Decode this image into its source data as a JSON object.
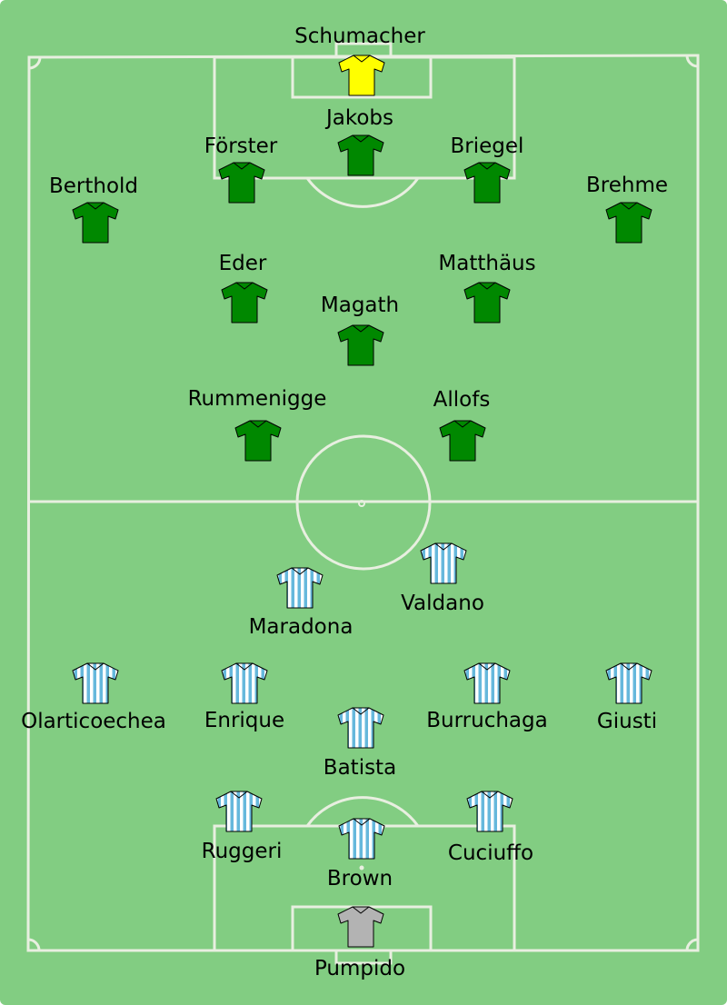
{
  "colors": {
    "pitch": "#82cd82",
    "lines": "#e8efe0",
    "germany_kit": "#008800",
    "germany_goalkeeper_kit": "#ffff00",
    "argentina_stripe_light": "#ffffff",
    "argentina_stripe_blue": "#66b8dc",
    "argentina_goalkeeper_kit": "#b3b3b3"
  },
  "germany": {
    "players": [
      {
        "name": "Schumacher",
        "role": "goalkeeper"
      },
      {
        "name": "Jakobs",
        "role": "outfield"
      },
      {
        "name": "Förster",
        "role": "outfield"
      },
      {
        "name": "Briegel",
        "role": "outfield"
      },
      {
        "name": "Berthold",
        "role": "outfield"
      },
      {
        "name": "Brehme",
        "role": "outfield"
      },
      {
        "name": "Eder",
        "role": "outfield"
      },
      {
        "name": "Matthäus",
        "role": "outfield"
      },
      {
        "name": "Magath",
        "role": "outfield"
      },
      {
        "name": "Rummenigge",
        "role": "outfield"
      },
      {
        "name": "Allofs",
        "role": "outfield"
      }
    ]
  },
  "argentina": {
    "players": [
      {
        "name": "Valdano",
        "role": "outfield"
      },
      {
        "name": "Maradona",
        "role": "outfield"
      },
      {
        "name": "Olarticoechea",
        "role": "outfield"
      },
      {
        "name": "Enrique",
        "role": "outfield"
      },
      {
        "name": "Burruchaga",
        "role": "outfield"
      },
      {
        "name": "Giusti",
        "role": "outfield"
      },
      {
        "name": "Batista",
        "role": "outfield"
      },
      {
        "name": "Ruggeri",
        "role": "outfield"
      },
      {
        "name": "Cuciuffo",
        "role": "outfield"
      },
      {
        "name": "Brown",
        "role": "outfield"
      },
      {
        "name": "Pumpido",
        "role": "goalkeeper"
      }
    ]
  }
}
